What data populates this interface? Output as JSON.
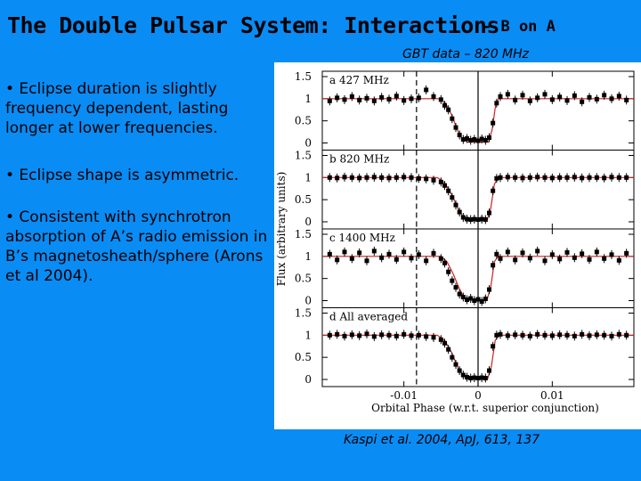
{
  "slide": {
    "title": "The Double Pulsar System: Interactions",
    "title_suffix": "- B on A",
    "figure_caption": "GBT data – 820 MHz",
    "bullets": [
      "• Eclipse duration is slightly frequency dependent, lasting longer at lower frequencies.",
      "• Eclipse shape is asymmetric.",
      "• Consistent with synchrotron absorption of A’s radio emission in B’s magnetosheath/sphere (Arons et al 2004)."
    ],
    "citation": "Kaspi et al. 2004, ApJ, 613, 137"
  },
  "colors": {
    "background": "#0a8cf5",
    "plot_background": "#ffffff",
    "data_points": "#000000",
    "model_curve": "#cc2222",
    "dashed_line": "#000000"
  },
  "chart_data": {
    "type": "scatter",
    "xlabel": "Orbital Phase (w.r.t. superior conjunction)",
    "ylabel": "Flux (arbitrary units)",
    "xlim": [
      -0.021,
      0.021
    ],
    "x_ticks": [
      -0.01,
      0,
      0.01
    ],
    "x_tick_labels": [
      "-0.01",
      "0",
      "0.01"
    ],
    "y_ticks": [
      0,
      0.5,
      1,
      1.5
    ],
    "y_tick_labels": [
      "0",
      "0.5",
      "1",
      "1.5"
    ],
    "ylim": [
      0,
      1.5
    ],
    "vertical_reference_lines": [
      -0.0083,
      0
    ],
    "panels": [
      {
        "label": "a",
        "name": "427 MHz",
        "model": [
          [
            -0.021,
            1.0
          ],
          [
            -0.0052,
            1.0
          ],
          [
            -0.0044,
            0.9
          ],
          [
            -0.0036,
            0.65
          ],
          [
            -0.0028,
            0.3
          ],
          [
            -0.0022,
            0.1
          ],
          [
            -0.0014,
            0.02
          ],
          [
            0.0014,
            0.02
          ],
          [
            0.0019,
            0.3
          ],
          [
            0.0024,
            0.9
          ],
          [
            0.0028,
            1.0
          ],
          [
            0.021,
            1.0
          ]
        ],
        "points": [
          [
            -0.02,
            0.95
          ],
          [
            -0.019,
            1.02
          ],
          [
            -0.018,
            0.98
          ],
          [
            -0.017,
            1.05
          ],
          [
            -0.016,
            0.97
          ],
          [
            -0.015,
            1.01
          ],
          [
            -0.014,
            0.95
          ],
          [
            -0.013,
            1.03
          ],
          [
            -0.012,
            0.99
          ],
          [
            -0.011,
            1.06
          ],
          [
            -0.01,
            0.96
          ],
          [
            -0.009,
            1.0
          ],
          [
            -0.008,
            1.02
          ],
          [
            -0.007,
            1.2
          ],
          [
            -0.006,
            1.05
          ],
          [
            -0.005,
            0.98
          ],
          [
            -0.0045,
            0.85
          ],
          [
            -0.004,
            0.75
          ],
          [
            -0.0035,
            0.55
          ],
          [
            -0.003,
            0.35
          ],
          [
            -0.0025,
            0.18
          ],
          [
            -0.002,
            0.08
          ],
          [
            -0.0015,
            0.1
          ],
          [
            -0.001,
            0.06
          ],
          [
            -0.0005,
            0.08
          ],
          [
            0.0,
            0.05
          ],
          [
            0.0005,
            0.09
          ],
          [
            0.001,
            0.06
          ],
          [
            0.0015,
            0.12
          ],
          [
            0.002,
            0.45
          ],
          [
            0.0025,
            0.9
          ],
          [
            0.003,
            1.05
          ],
          [
            0.004,
            1.1
          ],
          [
            0.005,
            0.97
          ],
          [
            0.006,
            1.08
          ],
          [
            0.007,
            0.95
          ],
          [
            0.008,
            1.02
          ],
          [
            0.009,
            1.1
          ],
          [
            0.01,
            0.98
          ],
          [
            0.011,
            1.04
          ],
          [
            0.012,
            0.96
          ],
          [
            0.013,
            1.07
          ],
          [
            0.014,
            0.93
          ],
          [
            0.015,
            1.03
          ],
          [
            0.016,
            0.99
          ],
          [
            0.017,
            1.08
          ],
          [
            0.018,
            1.0
          ],
          [
            0.019,
            1.06
          ],
          [
            0.02,
            0.97
          ]
        ]
      },
      {
        "label": "b",
        "name": "820 MHz",
        "model": [
          [
            -0.021,
            1.0
          ],
          [
            -0.0055,
            1.0
          ],
          [
            -0.0045,
            0.88
          ],
          [
            -0.0035,
            0.6
          ],
          [
            -0.0027,
            0.3
          ],
          [
            -0.002,
            0.1
          ],
          [
            -0.0013,
            0.03
          ],
          [
            0.0012,
            0.03
          ],
          [
            0.0017,
            0.3
          ],
          [
            0.0022,
            0.85
          ],
          [
            0.0027,
            1.0
          ],
          [
            0.021,
            1.0
          ]
        ],
        "points": [
          [
            -0.02,
            1.0
          ],
          [
            -0.019,
            0.99
          ],
          [
            -0.018,
            1.01
          ],
          [
            -0.017,
            1.0
          ],
          [
            -0.016,
            0.99
          ],
          [
            -0.015,
            1.0
          ],
          [
            -0.014,
            1.01
          ],
          [
            -0.013,
            1.0
          ],
          [
            -0.012,
            0.99
          ],
          [
            -0.011,
            1.0
          ],
          [
            -0.01,
            1.01
          ],
          [
            -0.009,
            1.0
          ],
          [
            -0.008,
            0.98
          ],
          [
            -0.007,
            0.97
          ],
          [
            -0.006,
            0.94
          ],
          [
            -0.005,
            0.9
          ],
          [
            -0.0045,
            0.82
          ],
          [
            -0.004,
            0.7
          ],
          [
            -0.0035,
            0.55
          ],
          [
            -0.003,
            0.38
          ],
          [
            -0.0025,
            0.22
          ],
          [
            -0.002,
            0.1
          ],
          [
            -0.0015,
            0.06
          ],
          [
            -0.001,
            0.05
          ],
          [
            -0.0005,
            0.06
          ],
          [
            0.0,
            0.05
          ],
          [
            0.0005,
            0.06
          ],
          [
            0.001,
            0.05
          ],
          [
            0.0015,
            0.2
          ],
          [
            0.002,
            0.7
          ],
          [
            0.0025,
            0.98
          ],
          [
            0.003,
            1.0
          ],
          [
            0.004,
            1.01
          ],
          [
            0.005,
            1.0
          ],
          [
            0.006,
            0.99
          ],
          [
            0.007,
            1.0
          ],
          [
            0.008,
            1.01
          ],
          [
            0.009,
            1.0
          ],
          [
            0.01,
            0.99
          ],
          [
            0.011,
            1.0
          ],
          [
            0.012,
            1.0
          ],
          [
            0.013,
            1.01
          ],
          [
            0.014,
            0.99
          ],
          [
            0.015,
            1.0
          ],
          [
            0.016,
            1.0
          ],
          [
            0.017,
            0.99
          ],
          [
            0.018,
            1.01
          ],
          [
            0.019,
            1.0
          ],
          [
            0.02,
            1.0
          ]
        ]
      },
      {
        "label": "c",
        "name": "1400 MHz",
        "model": [
          [
            -0.021,
            1.0
          ],
          [
            -0.005,
            1.0
          ],
          [
            -0.0042,
            0.88
          ],
          [
            -0.0034,
            0.62
          ],
          [
            -0.0026,
            0.3
          ],
          [
            -0.002,
            0.1
          ],
          [
            -0.0013,
            0.02
          ],
          [
            0.0012,
            0.02
          ],
          [
            0.0017,
            0.3
          ],
          [
            0.0022,
            0.88
          ],
          [
            0.0027,
            1.0
          ],
          [
            0.021,
            1.0
          ]
        ],
        "points": [
          [
            -0.02,
            1.05
          ],
          [
            -0.019,
            0.92
          ],
          [
            -0.018,
            1.1
          ],
          [
            -0.017,
            0.95
          ],
          [
            -0.016,
            1.08
          ],
          [
            -0.015,
            0.9
          ],
          [
            -0.014,
            1.12
          ],
          [
            -0.013,
            0.97
          ],
          [
            -0.012,
            1.05
          ],
          [
            -0.011,
            0.93
          ],
          [
            -0.01,
            1.1
          ],
          [
            -0.009,
            0.96
          ],
          [
            -0.008,
            1.04
          ],
          [
            -0.007,
            0.9
          ],
          [
            -0.006,
            1.07
          ],
          [
            -0.005,
            0.95
          ],
          [
            -0.0045,
            0.85
          ],
          [
            -0.004,
            0.65
          ],
          [
            -0.0035,
            0.45
          ],
          [
            -0.003,
            0.3
          ],
          [
            -0.0025,
            0.15
          ],
          [
            -0.002,
            0.08
          ],
          [
            -0.0015,
            0.02
          ],
          [
            -0.001,
            0.05
          ],
          [
            -0.0005,
            0.0
          ],
          [
            0.0,
            0.03
          ],
          [
            0.0005,
            -0.02
          ],
          [
            0.001,
            0.04
          ],
          [
            0.0015,
            0.25
          ],
          [
            0.002,
            0.8
          ],
          [
            0.0025,
            1.05
          ],
          [
            0.003,
            0.95
          ],
          [
            0.004,
            1.1
          ],
          [
            0.005,
            0.92
          ],
          [
            0.006,
            1.08
          ],
          [
            0.007,
            0.96
          ],
          [
            0.008,
            1.12
          ],
          [
            0.009,
            0.9
          ],
          [
            0.01,
            1.04
          ],
          [
            0.011,
            0.94
          ],
          [
            0.012,
            1.09
          ],
          [
            0.013,
            0.97
          ],
          [
            0.014,
            1.06
          ],
          [
            0.015,
            0.93
          ],
          [
            0.016,
            1.1
          ],
          [
            0.017,
            0.95
          ],
          [
            0.018,
            1.04
          ],
          [
            0.019,
            0.91
          ],
          [
            0.02,
            1.07
          ]
        ]
      },
      {
        "label": "d",
        "name": "All averaged",
        "model": [
          [
            -0.021,
            1.0
          ],
          [
            -0.0055,
            1.0
          ],
          [
            -0.0045,
            0.88
          ],
          [
            -0.0036,
            0.62
          ],
          [
            -0.0028,
            0.3
          ],
          [
            -0.0021,
            0.1
          ],
          [
            -0.0014,
            0.02
          ],
          [
            0.0013,
            0.02
          ],
          [
            0.0018,
            0.3
          ],
          [
            0.0023,
            0.88
          ],
          [
            0.0028,
            1.0
          ],
          [
            0.021,
            1.0
          ]
        ],
        "points": [
          [
            -0.02,
            1.0
          ],
          [
            -0.019,
            1.02
          ],
          [
            -0.018,
            0.98
          ],
          [
            -0.017,
            1.01
          ],
          [
            -0.016,
            0.99
          ],
          [
            -0.015,
            1.03
          ],
          [
            -0.014,
            0.97
          ],
          [
            -0.013,
            1.01
          ],
          [
            -0.012,
            1.0
          ],
          [
            -0.011,
            0.98
          ],
          [
            -0.01,
            1.02
          ],
          [
            -0.009,
            0.99
          ],
          [
            -0.008,
            1.0
          ],
          [
            -0.007,
            0.97
          ],
          [
            -0.006,
            0.95
          ],
          [
            -0.005,
            0.9
          ],
          [
            -0.0045,
            0.82
          ],
          [
            -0.004,
            0.68
          ],
          [
            -0.0035,
            0.5
          ],
          [
            -0.003,
            0.34
          ],
          [
            -0.0025,
            0.2
          ],
          [
            -0.002,
            0.1
          ],
          [
            -0.0015,
            0.05
          ],
          [
            -0.001,
            0.03
          ],
          [
            -0.0005,
            0.04
          ],
          [
            0.0,
            0.03
          ],
          [
            0.0005,
            0.04
          ],
          [
            0.001,
            0.03
          ],
          [
            0.0015,
            0.2
          ],
          [
            0.002,
            0.75
          ],
          [
            0.0025,
            1.0
          ],
          [
            0.003,
            1.02
          ],
          [
            0.004,
            0.99
          ],
          [
            0.005,
            1.01
          ],
          [
            0.006,
            1.0
          ],
          [
            0.007,
            0.98
          ],
          [
            0.008,
            1.02
          ],
          [
            0.009,
            1.0
          ],
          [
            0.01,
            0.99
          ],
          [
            0.011,
            1.01
          ],
          [
            0.012,
            1.0
          ],
          [
            0.013,
            0.98
          ],
          [
            0.014,
            1.02
          ],
          [
            0.015,
            0.99
          ],
          [
            0.016,
            1.01
          ],
          [
            0.017,
            1.0
          ],
          [
            0.018,
            0.98
          ],
          [
            0.019,
            1.02
          ],
          [
            0.02,
            1.0
          ]
        ]
      }
    ]
  }
}
